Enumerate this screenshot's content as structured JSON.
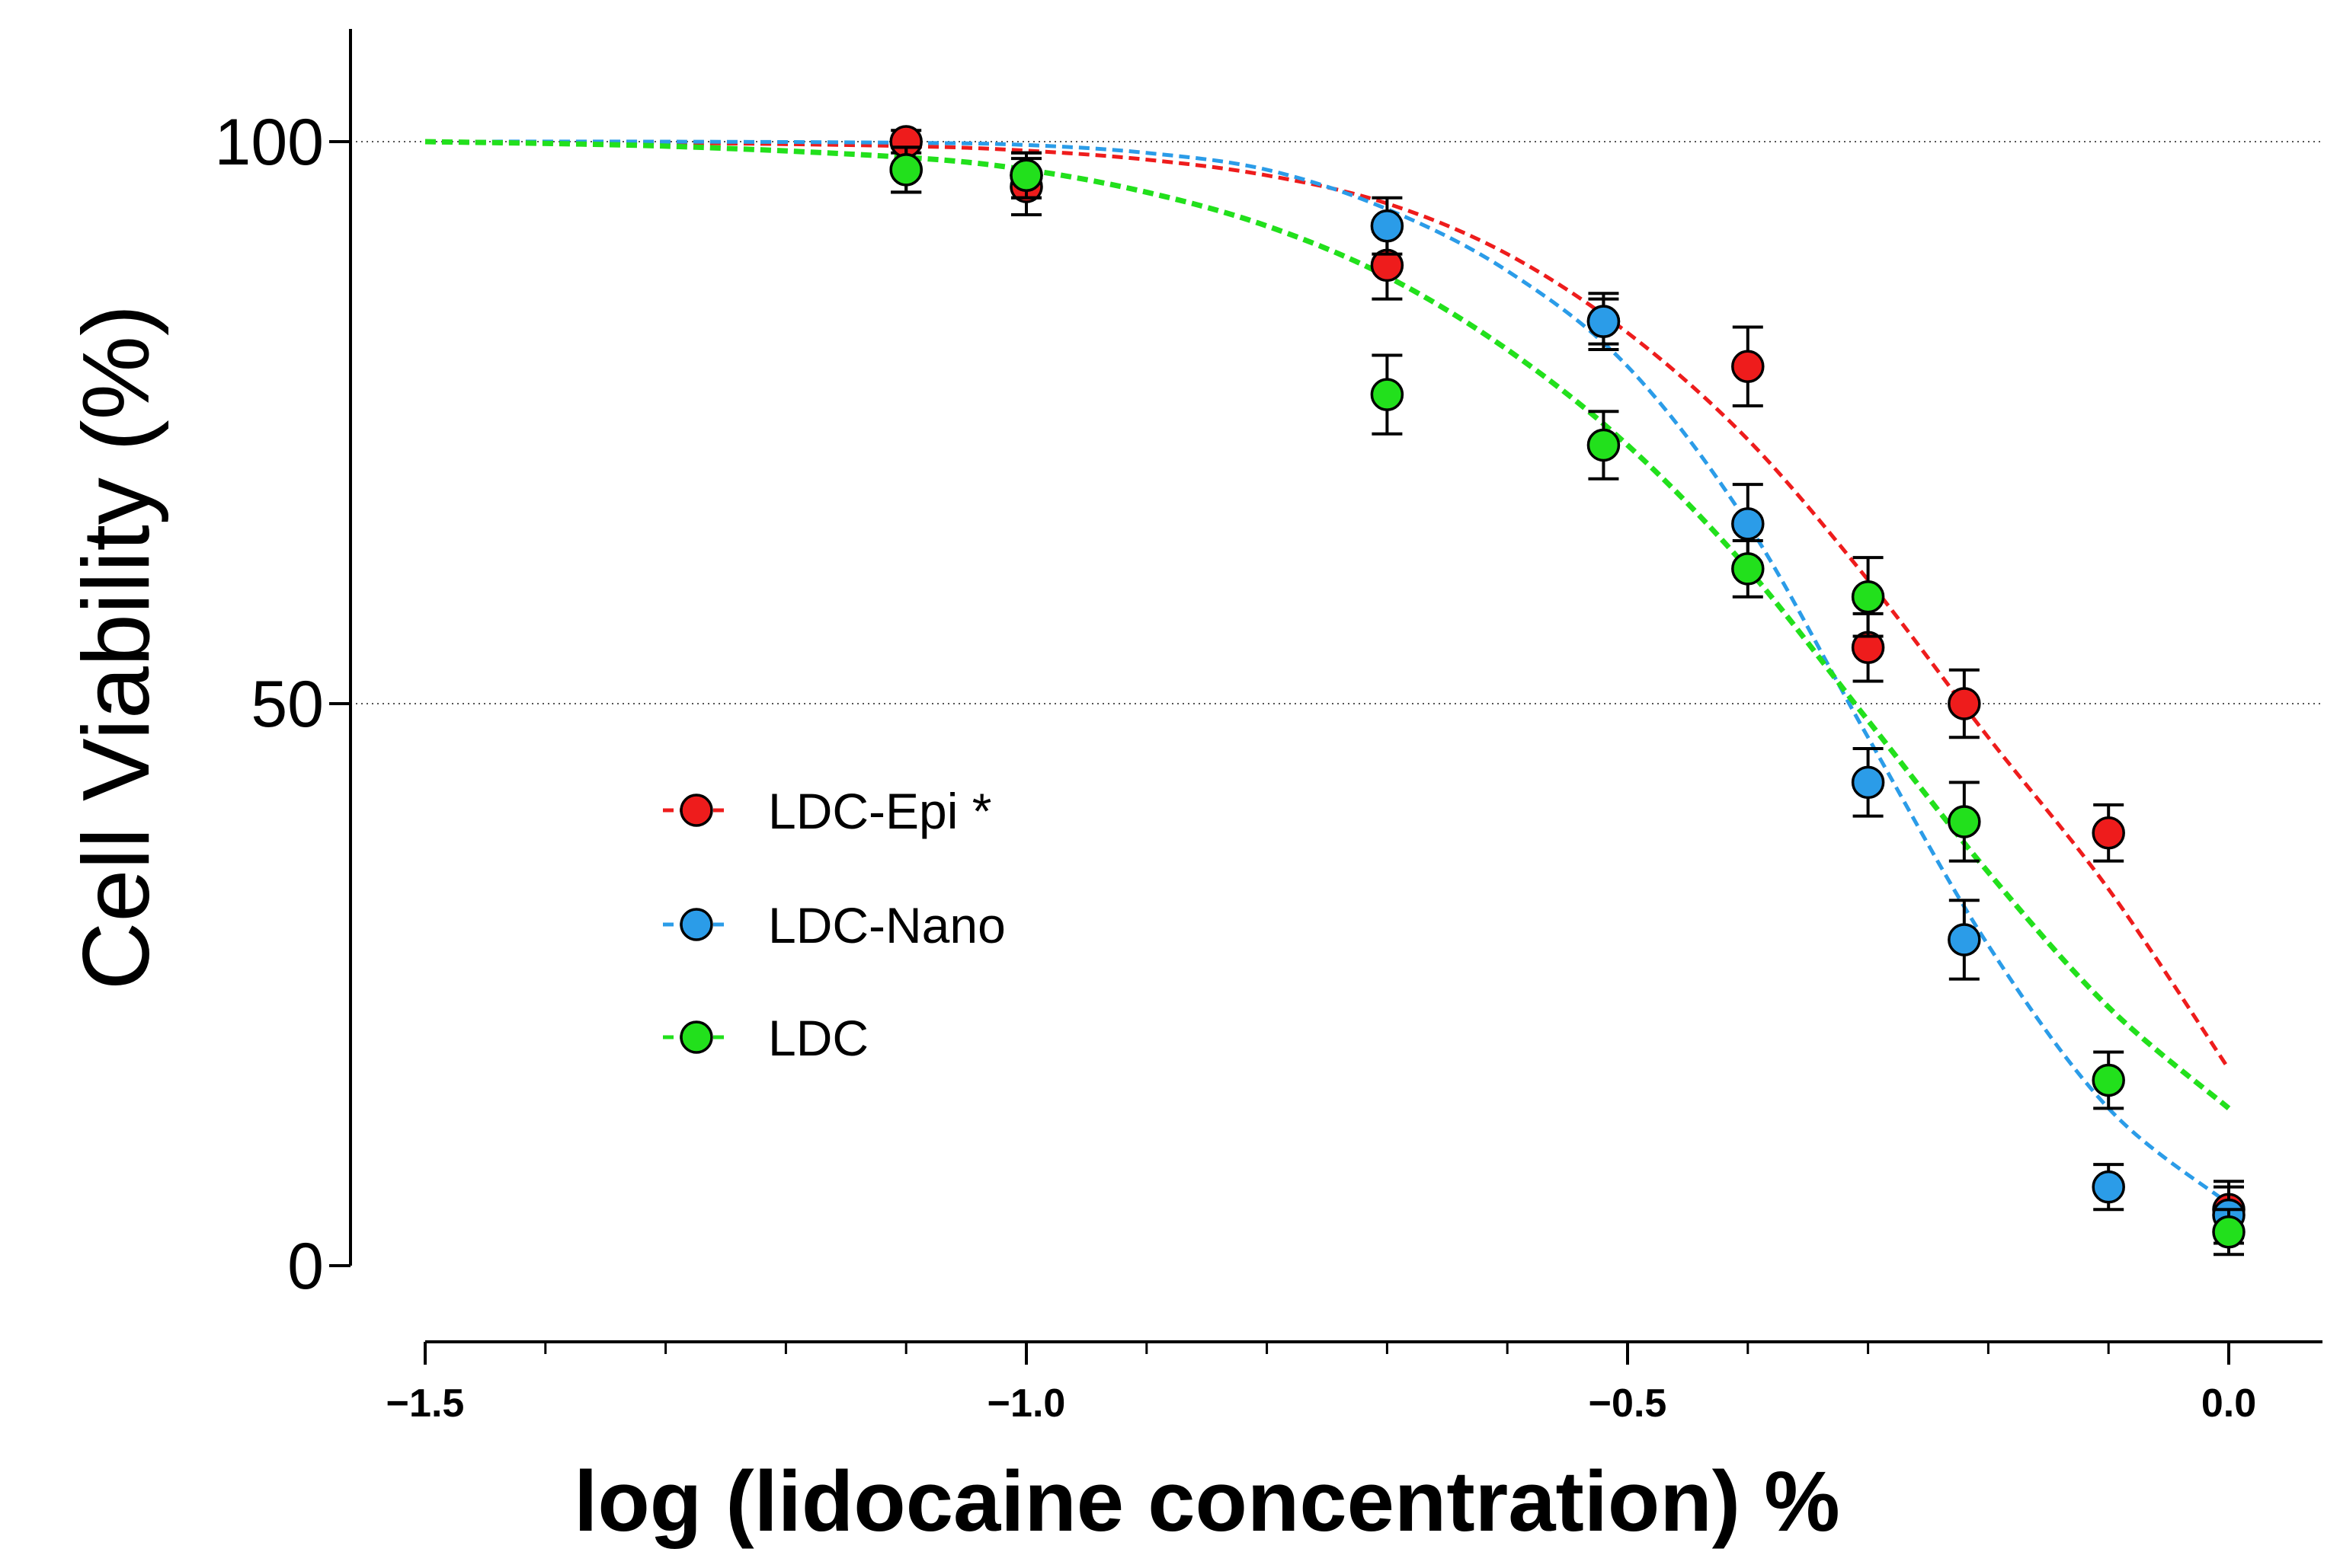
{
  "chart_data": {
    "type": "scatter",
    "title": "",
    "xlabel": "log (lidocaine concentration) %",
    "ylabel": "Cell Viability (%)",
    "xlim": [
      -1.5,
      0.1
    ],
    "ylim": [
      -7,
      110
    ],
    "x_ticks": [
      -1.5,
      -1.0,
      -0.5,
      0.0
    ],
    "x_tick_labels": [
      "−1.5",
      "−1.0",
      "−0.5",
      "0.0"
    ],
    "y_ticks": [
      0,
      50,
      100
    ],
    "y_tick_labels": [
      "0",
      "50",
      "100"
    ],
    "gridlines_y": [
      50,
      100
    ],
    "legend_position": "center-left",
    "series": [
      {
        "name": "LDC-Epi *",
        "color": "#ee1c1c",
        "x": [
          -1.1,
          -1.0,
          -0.7,
          -0.52,
          -0.4,
          -0.3,
          -0.22,
          -0.1,
          0.0
        ],
        "y": [
          100,
          96,
          89,
          84,
          80,
          55,
          50,
          38.5,
          5
        ],
        "err": [
          1,
          2.5,
          3,
          2,
          3.5,
          3,
          3,
          2.5,
          2.5
        ],
        "fit": [
          [
            -1.5,
            100
          ],
          [
            -1.3,
            99.9
          ],
          [
            -1.1,
            99.6
          ],
          [
            -1.0,
            99.2
          ],
          [
            -0.9,
            98.4
          ],
          [
            -0.8,
            97
          ],
          [
            -0.7,
            94.5
          ],
          [
            -0.6,
            90
          ],
          [
            -0.5,
            83
          ],
          [
            -0.4,
            73.5
          ],
          [
            -0.3,
            61
          ],
          [
            -0.2,
            47
          ],
          [
            -0.1,
            33.5
          ],
          [
            0.0,
            17.5
          ]
        ]
      },
      {
        "name": "LDC-Nano",
        "color": "#2b9ce8",
        "x": [
          -1.1,
          -1.0,
          -0.7,
          -0.52,
          -0.4,
          -0.3,
          -0.22,
          -0.1,
          0.0
        ],
        "y": [
          97.5,
          97,
          92.5,
          84,
          66,
          43,
          29,
          7,
          4.5
        ],
        "err": [
          2,
          2,
          2.5,
          2.5,
          3.5,
          3,
          3.5,
          2,
          2.5
        ],
        "fit": [
          [
            -1.5,
            100
          ],
          [
            -1.3,
            100
          ],
          [
            -1.1,
            99.9
          ],
          [
            -1.0,
            99.7
          ],
          [
            -0.9,
            99
          ],
          [
            -0.8,
            97.5
          ],
          [
            -0.7,
            94
          ],
          [
            -0.6,
            88.5
          ],
          [
            -0.5,
            80
          ],
          [
            -0.4,
            66
          ],
          [
            -0.3,
            47
          ],
          [
            -0.2,
            28.5
          ],
          [
            -0.1,
            14
          ],
          [
            0.0,
            5.5
          ]
        ]
      },
      {
        "name": "LDC",
        "color": "#22e01c",
        "x": [
          -1.1,
          -1.0,
          -0.7,
          -0.52,
          -0.4,
          -0.3,
          -0.22,
          -0.1,
          0.0
        ],
        "y": [
          97.5,
          97,
          77.5,
          73,
          62,
          59.5,
          39.5,
          16.5,
          3
        ],
        "err": [
          2,
          2,
          3.5,
          3,
          2.5,
          3.5,
          3.5,
          2.5,
          2
        ],
        "fit": [
          [
            -1.5,
            100
          ],
          [
            -1.3,
            99.6
          ],
          [
            -1.1,
            98.6
          ],
          [
            -1.0,
            97.5
          ],
          [
            -0.9,
            95.5
          ],
          [
            -0.8,
            92.5
          ],
          [
            -0.7,
            88
          ],
          [
            -0.6,
            81.5
          ],
          [
            -0.5,
            73
          ],
          [
            -0.4,
            62
          ],
          [
            -0.3,
            48.5
          ],
          [
            -0.2,
            35
          ],
          [
            -0.1,
            23
          ],
          [
            0.0,
            14
          ]
        ]
      }
    ]
  }
}
